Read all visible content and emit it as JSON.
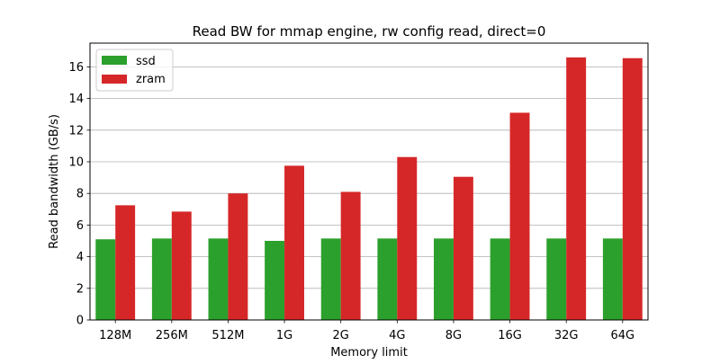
{
  "chart_data": {
    "type": "bar",
    "title": "Read BW for mmap engine, rw config read, direct=0",
    "xlabel": "Memory limit",
    "ylabel": "Read bandwidth (GB/s)",
    "categories": [
      "128M",
      "256M",
      "512M",
      "1G",
      "2G",
      "4G",
      "8G",
      "16G",
      "32G",
      "64G"
    ],
    "series": [
      {
        "name": "ssd",
        "color": "#2ca02c",
        "values": [
          5.1,
          5.15,
          5.15,
          5.0,
          5.15,
          5.15,
          5.15,
          5.15,
          5.15,
          5.15
        ]
      },
      {
        "name": "zram",
        "color": "#d62728",
        "values": [
          7.25,
          6.85,
          8.0,
          9.75,
          8.1,
          10.3,
          9.05,
          13.1,
          16.6,
          16.55
        ]
      }
    ],
    "ylim": [
      0,
      17.5
    ],
    "yticks": [
      0,
      2,
      4,
      6,
      8,
      10,
      12,
      14,
      16
    ],
    "grid": "y",
    "legend_position": "top-left"
  }
}
